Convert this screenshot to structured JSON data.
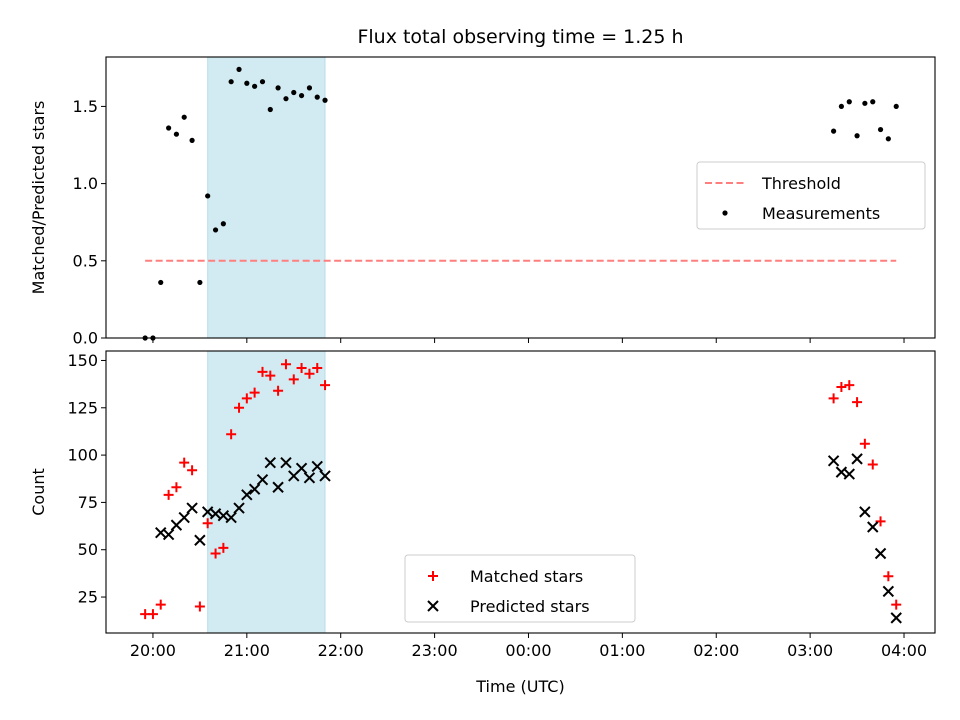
{
  "chart_data": [
    {
      "type": "scatter",
      "title": "Flux total observing time = 1.25 h",
      "xlabel": "",
      "ylabel": "Matched/Predicted stars",
      "x_unit": "hours UTC (continuous)",
      "xlim": [
        19.5,
        28.33
      ],
      "ylim": [
        0,
        1.82
      ],
      "yticks": [
        0.0,
        0.5,
        1.0,
        1.5
      ],
      "ytick_labels": [
        "0.0",
        "0.5",
        "1.0",
        "1.5"
      ],
      "xticks": [
        20,
        21,
        22,
        23,
        24,
        25,
        26,
        27,
        28
      ],
      "xtick_labels": [
        "",
        "",
        "",
        "",
        "",
        "",
        "",
        "",
        ""
      ],
      "shaded_span": {
        "x0": 20.583,
        "x1": 21.833,
        "color": "#add8e6"
      },
      "threshold": {
        "name": "Threshold",
        "y": 0.5,
        "x0": 19.917,
        "x1": 27.917,
        "color": "#ff7f7f"
      },
      "series": [
        {
          "name": "Measurements",
          "marker": "dot",
          "color": "#000000",
          "x": [
            19.917,
            20.0,
            20.083,
            20.167,
            20.25,
            20.333,
            20.417,
            20.5,
            20.583,
            20.667,
            20.75,
            20.833,
            20.917,
            21.0,
            21.083,
            21.167,
            21.25,
            21.333,
            21.417,
            21.5,
            21.583,
            21.667,
            21.75,
            21.833,
            27.25,
            27.333,
            27.417,
            27.5,
            27.583,
            27.667,
            27.75,
            27.833,
            27.917
          ],
          "y": [
            0.0,
            0.0,
            0.36,
            1.36,
            1.32,
            1.43,
            1.28,
            0.36,
            0.92,
            0.7,
            0.74,
            1.66,
            1.74,
            1.65,
            1.63,
            1.66,
            1.48,
            1.62,
            1.55,
            1.59,
            1.57,
            1.62,
            1.56,
            1.54,
            1.34,
            1.5,
            1.53,
            1.31,
            1.52,
            1.53,
            1.35,
            1.29,
            1.5
          ]
        }
      ],
      "legend": {
        "placement": "center-right",
        "entries": [
          "Threshold",
          "Measurements"
        ]
      }
    },
    {
      "type": "scatter",
      "title": "",
      "xlabel": "Time (UTC)",
      "ylabel": "Count",
      "x_unit": "hours UTC (continuous)",
      "xlim": [
        19.5,
        28.33
      ],
      "ylim": [
        6,
        155
      ],
      "yticks": [
        25,
        50,
        75,
        100,
        125,
        150
      ],
      "ytick_labels": [
        "25",
        "50",
        "75",
        "100",
        "125",
        "150"
      ],
      "xticks": [
        20,
        21,
        22,
        23,
        24,
        25,
        26,
        27,
        28
      ],
      "xtick_labels": [
        "20:00",
        "21:00",
        "22:00",
        "23:00",
        "00:00",
        "01:00",
        "02:00",
        "03:00",
        "04:00"
      ],
      "shaded_span": {
        "x0": 20.583,
        "x1": 21.833,
        "color": "#add8e6"
      },
      "series": [
        {
          "name": "Matched stars",
          "marker": "plus",
          "color": "#ff0000",
          "x": [
            19.917,
            20.0,
            20.083,
            20.167,
            20.25,
            20.333,
            20.417,
            20.5,
            20.583,
            20.667,
            20.75,
            20.833,
            20.917,
            21.0,
            21.083,
            21.167,
            21.25,
            21.333,
            21.417,
            21.5,
            21.583,
            21.667,
            21.75,
            21.833,
            27.25,
            27.333,
            27.417,
            27.5,
            27.583,
            27.667,
            27.75,
            27.833,
            27.917
          ],
          "y": [
            16,
            16,
            21,
            79,
            83,
            96,
            92,
            20,
            64,
            48,
            51,
            111,
            125,
            130,
            133,
            144,
            142,
            134,
            148,
            140,
            146,
            143,
            146,
            137,
            130,
            136,
            137,
            128,
            106,
            95,
            65,
            36,
            21
          ]
        },
        {
          "name": "Predicted stars",
          "marker": "x",
          "color": "#000000",
          "x": [
            20.083,
            20.167,
            20.25,
            20.333,
            20.417,
            20.5,
            20.583,
            20.667,
            20.75,
            20.833,
            20.917,
            21.0,
            21.083,
            21.167,
            21.25,
            21.333,
            21.417,
            21.5,
            21.583,
            21.667,
            21.75,
            21.833,
            27.25,
            27.333,
            27.417,
            27.5,
            27.583,
            27.667,
            27.75,
            27.833,
            27.917
          ],
          "y": [
            59,
            58,
            63,
            67,
            72,
            55,
            70,
            69,
            68,
            67,
            72,
            79,
            82,
            87,
            96,
            83,
            96,
            89,
            93,
            88,
            94,
            89,
            97,
            91,
            90,
            98,
            70,
            62,
            48,
            28,
            14
          ]
        }
      ],
      "legend": {
        "placement": "lower-center",
        "entries": [
          "Matched stars",
          "Predicted stars"
        ]
      }
    }
  ]
}
